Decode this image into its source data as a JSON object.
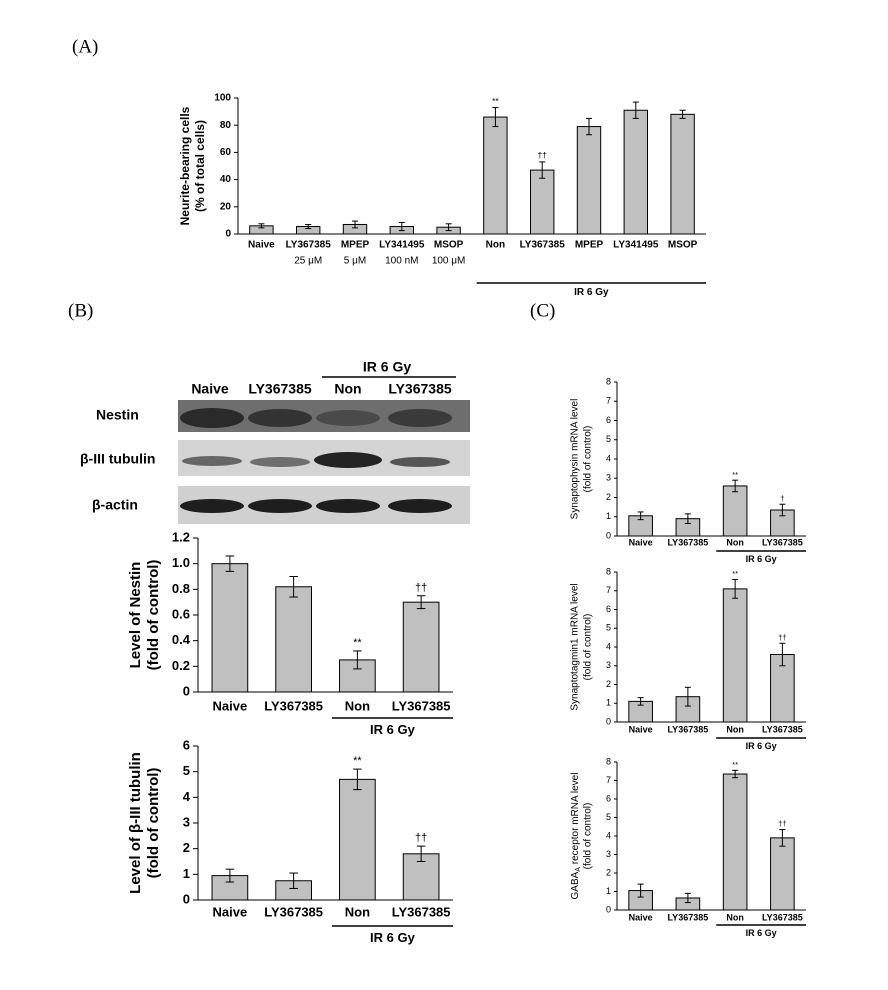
{
  "panels": [
    "(A)",
    "(B)",
    "(C)"
  ],
  "blot": {
    "group": "IR 6 Gy",
    "columns": [
      "Naive",
      "LY367385",
      "Non",
      "LY367385"
    ],
    "rows": [
      "Nestin",
      "β-III tubulin",
      "β-actin"
    ]
  },
  "chart_data": [
    {
      "type": "bar",
      "ylabel": [
        "Neurite-bearing cells",
        "(% of total cells)"
      ],
      "ylim": [
        0,
        100
      ],
      "yticks": [
        0,
        20,
        40,
        60,
        80,
        100
      ],
      "color": "#c0c0c0",
      "groups": [
        {
          "label": null,
          "categories": [
            [
              "Naive"
            ],
            [
              "LY367385",
              "25 μM"
            ],
            [
              "MPEP",
              "5 μM"
            ],
            [
              "LY341495",
              "100 nM"
            ],
            [
              "MSOP",
              "100 μM"
            ]
          ],
          "values": [
            6,
            5.5,
            7,
            5.5,
            5
          ],
          "errors": [
            1.5,
            1.5,
            2.5,
            3,
            2.5
          ],
          "markers": [
            null,
            null,
            null,
            null,
            null
          ]
        },
        {
          "label": "IR 6 Gy",
          "categories": [
            [
              "Non"
            ],
            [
              "LY367385"
            ],
            [
              "MPEP"
            ],
            [
              "LY341495"
            ],
            [
              "MSOP"
            ]
          ],
          "values": [
            86,
            47,
            79,
            91,
            88
          ],
          "errors": [
            7,
            6,
            6,
            6,
            3
          ],
          "markers": [
            "**",
            "††",
            null,
            null,
            null
          ]
        }
      ]
    },
    {
      "type": "bar",
      "ylabel": [
        "Level of Nestin",
        "(fold of control)"
      ],
      "ylim": [
        0,
        1.2
      ],
      "yticks": [
        0,
        0.2,
        0.4,
        0.6,
        0.8,
        {
          "value": 1,
          "label": "1.0"
        },
        1.2
      ],
      "color": "#c0c0c0",
      "groups": [
        {
          "label": null,
          "categories": [
            [
              "Naive"
            ],
            [
              "LY367385"
            ]
          ],
          "values": [
            1.0,
            0.82
          ],
          "errors": [
            0.06,
            0.08
          ],
          "markers": [
            null,
            null
          ]
        },
        {
          "label": "IR 6 Gy",
          "categories": [
            [
              "Non"
            ],
            [
              "LY367385"
            ]
          ],
          "values": [
            0.25,
            0.7
          ],
          "errors": [
            0.07,
            0.05
          ],
          "markers": [
            "**",
            "††"
          ]
        }
      ]
    },
    {
      "type": "bar",
      "ylabel": [
        "Level of β-III tubulin",
        "(fold of control)"
      ],
      "ylim": [
        0,
        6
      ],
      "yticks": [
        0,
        1,
        2,
        3,
        4,
        5,
        6
      ],
      "color": "#c0c0c0",
      "groups": [
        {
          "label": null,
          "categories": [
            [
              "Naive"
            ],
            [
              "LY367385"
            ]
          ],
          "values": [
            0.95,
            0.75
          ],
          "errors": [
            0.25,
            0.3
          ],
          "markers": [
            null,
            null
          ]
        },
        {
          "label": "IR 6 Gy",
          "categories": [
            [
              "Non"
            ],
            [
              "LY367385"
            ]
          ],
          "values": [
            4.7,
            1.8
          ],
          "errors": [
            0.4,
            0.3
          ],
          "markers": [
            "**",
            "††"
          ]
        }
      ]
    },
    {
      "type": "bar",
      "ylabel": [
        "Synaptophysin mRNA level",
        "(fold of control)"
      ],
      "ylim": [
        0,
        8
      ],
      "yticks": [
        0,
        1,
        2,
        3,
        4,
        5,
        6,
        7,
        8
      ],
      "color": "#c0c0c0",
      "groups": [
        {
          "label": null,
          "categories": [
            [
              "Naive"
            ],
            [
              "LY367385"
            ]
          ],
          "values": [
            1.05,
            0.9
          ],
          "errors": [
            0.2,
            0.25
          ],
          "markers": [
            null,
            null
          ]
        },
        {
          "label": "IR 6 Gy",
          "categories": [
            [
              "Non"
            ],
            [
              "LY367385"
            ]
          ],
          "values": [
            2.6,
            1.35
          ],
          "errors": [
            0.3,
            0.3
          ],
          "markers": [
            "**",
            "†"
          ]
        }
      ]
    },
    {
      "type": "bar",
      "ylabel": [
        "Synaptotagmin1 mRNA level",
        "(fold of control)"
      ],
      "ylim": [
        0,
        8
      ],
      "yticks": [
        0,
        1,
        2,
        3,
        4,
        5,
        6,
        7,
        8
      ],
      "color": "#c0c0c0",
      "groups": [
        {
          "label": null,
          "categories": [
            [
              "Naive"
            ],
            [
              "LY367385"
            ]
          ],
          "values": [
            1.1,
            1.35
          ],
          "errors": [
            0.2,
            0.5
          ],
          "markers": [
            null,
            null
          ]
        },
        {
          "label": "IR 6 Gy",
          "categories": [
            [
              "Non"
            ],
            [
              "LY367385"
            ]
          ],
          "values": [
            7.1,
            3.6
          ],
          "errors": [
            0.5,
            0.6
          ],
          "markers": [
            "**",
            "††"
          ]
        }
      ]
    },
    {
      "type": "bar",
      "ylabel": [
        [
          "GABA",
          {
            "sub": "A"
          },
          " receptor mRNA level"
        ],
        "(fold of control)"
      ],
      "ylim": [
        0,
        8
      ],
      "yticks": [
        0,
        1,
        2,
        3,
        4,
        5,
        6,
        7,
        8
      ],
      "color": "#c0c0c0",
      "groups": [
        {
          "label": null,
          "categories": [
            [
              "Naive"
            ],
            [
              "LY367385"
            ]
          ],
          "values": [
            1.05,
            0.65
          ],
          "errors": [
            0.35,
            0.25
          ],
          "markers": [
            null,
            null
          ]
        },
        {
          "label": "IR 6 Gy",
          "categories": [
            [
              "Non"
            ],
            [
              "LY367385"
            ]
          ],
          "values": [
            7.35,
            3.9
          ],
          "errors": [
            0.2,
            0.45
          ],
          "markers": [
            "**",
            "††"
          ]
        }
      ]
    }
  ]
}
